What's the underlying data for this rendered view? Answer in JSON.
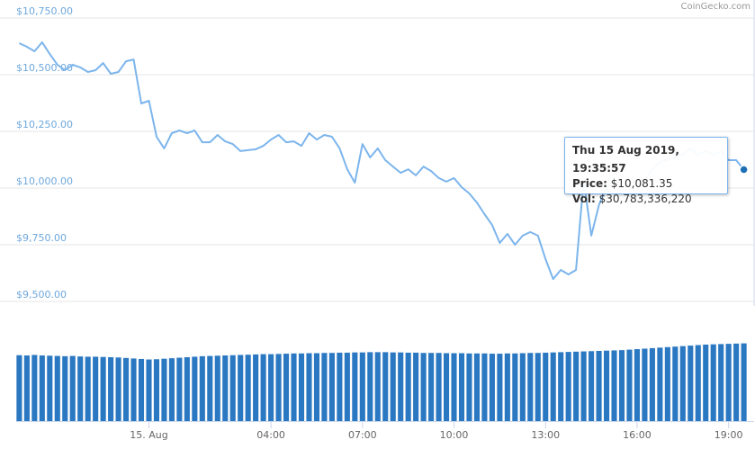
{
  "credit": "CoinGecko.com",
  "tooltip": {
    "time": "Thu 15 Aug 2019, 19:35:57",
    "price_label": "Price:",
    "price": "$10,081.35",
    "vol_label": "Vol:",
    "vol": "$30,783,336,220"
  },
  "chart_data": [
    {
      "type": "line",
      "color": "#7cb5ec",
      "grid": true,
      "x": [
        -4.25,
        -4,
        -3.75,
        -3.5,
        -3.25,
        -3,
        -2.75,
        -2.5,
        -2.25,
        -2,
        -1.75,
        -1.5,
        -1.25,
        -1,
        -0.75,
        -0.5,
        -0.25,
        0,
        0.25,
        0.5,
        0.75,
        1,
        1.25,
        1.5,
        1.75,
        2,
        2.25,
        2.5,
        2.75,
        3,
        3.25,
        3.5,
        3.75,
        4,
        4.25,
        4.5,
        4.75,
        5,
        5.25,
        5.5,
        5.75,
        6,
        6.25,
        6.5,
        6.75,
        7,
        7.25,
        7.5,
        7.75,
        8,
        8.25,
        8.5,
        8.75,
        9,
        9.25,
        9.5,
        9.75,
        10,
        10.25,
        10.5,
        10.75,
        11,
        11.25,
        11.5,
        11.75,
        12,
        12.25,
        12.5,
        12.75,
        13,
        13.25,
        13.5,
        13.75,
        14,
        14.25,
        14.5,
        14.75,
        15,
        15.25,
        15.5,
        15.75,
        16,
        16.25,
        16.5,
        16.75,
        17,
        17.25,
        17.5,
        17.75,
        18,
        18.25,
        18.5,
        18.75,
        19,
        19.25,
        19.5
      ],
      "values": [
        10639,
        10623,
        10603,
        10643,
        10591,
        10544,
        10520,
        10544,
        10532,
        10512,
        10520,
        10551,
        10504,
        10512,
        10559,
        10567,
        10373,
        10385,
        10226,
        10175,
        10242,
        10254,
        10242,
        10254,
        10202,
        10202,
        10234,
        10206,
        10194,
        10163,
        10167,
        10171,
        10186,
        10214,
        10234,
        10202,
        10206,
        10186,
        10242,
        10214,
        10234,
        10226,
        10175,
        10083,
        10024,
        10194,
        10135,
        10175,
        10123,
        10095,
        10067,
        10083,
        10056,
        10095,
        10075,
        10044,
        10028,
        10044,
        10004,
        9976,
        9936,
        9885,
        9837,
        9758,
        9798,
        9750,
        9790,
        9806,
        9790,
        9687,
        9599,
        9639,
        9619,
        9639,
        10036,
        9790,
        9925,
        10004,
        10036,
        10004,
        10016,
        10036,
        10036,
        10083,
        10115,
        10123,
        10135,
        10147,
        10175,
        10147,
        10163,
        10147,
        10163,
        10123,
        10123,
        10081.35
      ],
      "xlim": [
        -4.35,
        19.6
      ],
      "xticks": [
        {
          "value": 0,
          "label": "15. Aug"
        },
        {
          "value": 4,
          "label": "04:00"
        },
        {
          "value": 7,
          "label": "07:00"
        },
        {
          "value": 10,
          "label": "10:00"
        },
        {
          "value": 13,
          "label": "13:00"
        },
        {
          "value": 16,
          "label": "16:00"
        },
        {
          "value": 19,
          "label": "19:00"
        }
      ],
      "ylim": [
        9500,
        10750
      ],
      "yticks": [
        {
          "value": 9500,
          "label": "$9,500.00"
        },
        {
          "value": 9750,
          "label": "$9,750.00"
        },
        {
          "value": 10000,
          "label": "$10,000.00"
        },
        {
          "value": 10250,
          "label": "$10,250.00"
        },
        {
          "value": 10500,
          "label": "$10,500.00"
        },
        {
          "value": 10750,
          "label": "$10,750.00"
        }
      ]
    },
    {
      "type": "bar",
      "color": "#2b78c2",
      "x": [
        -4.25,
        -4,
        -3.75,
        -3.5,
        -3.25,
        -3,
        -2.75,
        -2.5,
        -2.25,
        -2,
        -1.75,
        -1.5,
        -1.25,
        -1,
        -0.75,
        -0.5,
        -0.25,
        0,
        0.25,
        0.5,
        0.75,
        1,
        1.25,
        1.5,
        1.75,
        2,
        2.25,
        2.5,
        2.75,
        3,
        3.25,
        3.5,
        3.75,
        4,
        4.25,
        4.5,
        4.75,
        5,
        5.25,
        5.5,
        5.75,
        6,
        6.25,
        6.5,
        6.75,
        7,
        7.25,
        7.5,
        7.75,
        8,
        8.25,
        8.5,
        8.75,
        9,
        9.25,
        9.5,
        9.75,
        10,
        10.25,
        10.5,
        10.75,
        11,
        11.25,
        11.5,
        11.75,
        12,
        12.25,
        12.5,
        12.75,
        13,
        13.25,
        13.5,
        13.75,
        14,
        14.25,
        14.5,
        14.75,
        15,
        15.25,
        15.5,
        15.75,
        16,
        16.25,
        16.5,
        16.75,
        17,
        17.25,
        17.5,
        17.75,
        18,
        18.25,
        18.5,
        18.75,
        19,
        19.25,
        19.5
      ],
      "values": [
        26100000000,
        26000000000,
        26200000000,
        26000000000,
        25900000000,
        25800000000,
        25700000000,
        25800000000,
        25600000000,
        25500000000,
        25500000000,
        25400000000,
        25300000000,
        25200000000,
        25000000000,
        24800000000,
        24600000000,
        24400000000,
        24500000000,
        24700000000,
        24900000000,
        25100000000,
        25300000000,
        25500000000,
        25700000000,
        25800000000,
        25900000000,
        26000000000,
        26100000000,
        26200000000,
        26300000000,
        26400000000,
        26500000000,
        26500000000,
        26600000000,
        26700000000,
        26800000000,
        26800000000,
        26900000000,
        26900000000,
        27000000000,
        27000000000,
        27100000000,
        27100000000,
        27200000000,
        27200000000,
        27300000000,
        27300000000,
        27300000000,
        27200000000,
        27200000000,
        27100000000,
        27100000000,
        27000000000,
        27000000000,
        27000000000,
        26900000000,
        26900000000,
        26900000000,
        26800000000,
        26800000000,
        26800000000,
        26700000000,
        26700000000,
        26800000000,
        26800000000,
        26900000000,
        27000000000,
        27000000000,
        27100000000,
        27200000000,
        27300000000,
        27400000000,
        27500000000,
        27600000000,
        27700000000,
        27800000000,
        27900000000,
        28000000000,
        28100000000,
        28300000000,
        28500000000,
        28700000000,
        28900000000,
        29100000000,
        29300000000,
        29500000000,
        29700000000,
        29900000000,
        30100000000,
        30300000000,
        30400000000,
        30500000000,
        30600000000,
        30700000000,
        30783336220
      ],
      "xlim": [
        -4.35,
        19.6
      ],
      "ylim": [
        0,
        31000000000
      ]
    }
  ]
}
